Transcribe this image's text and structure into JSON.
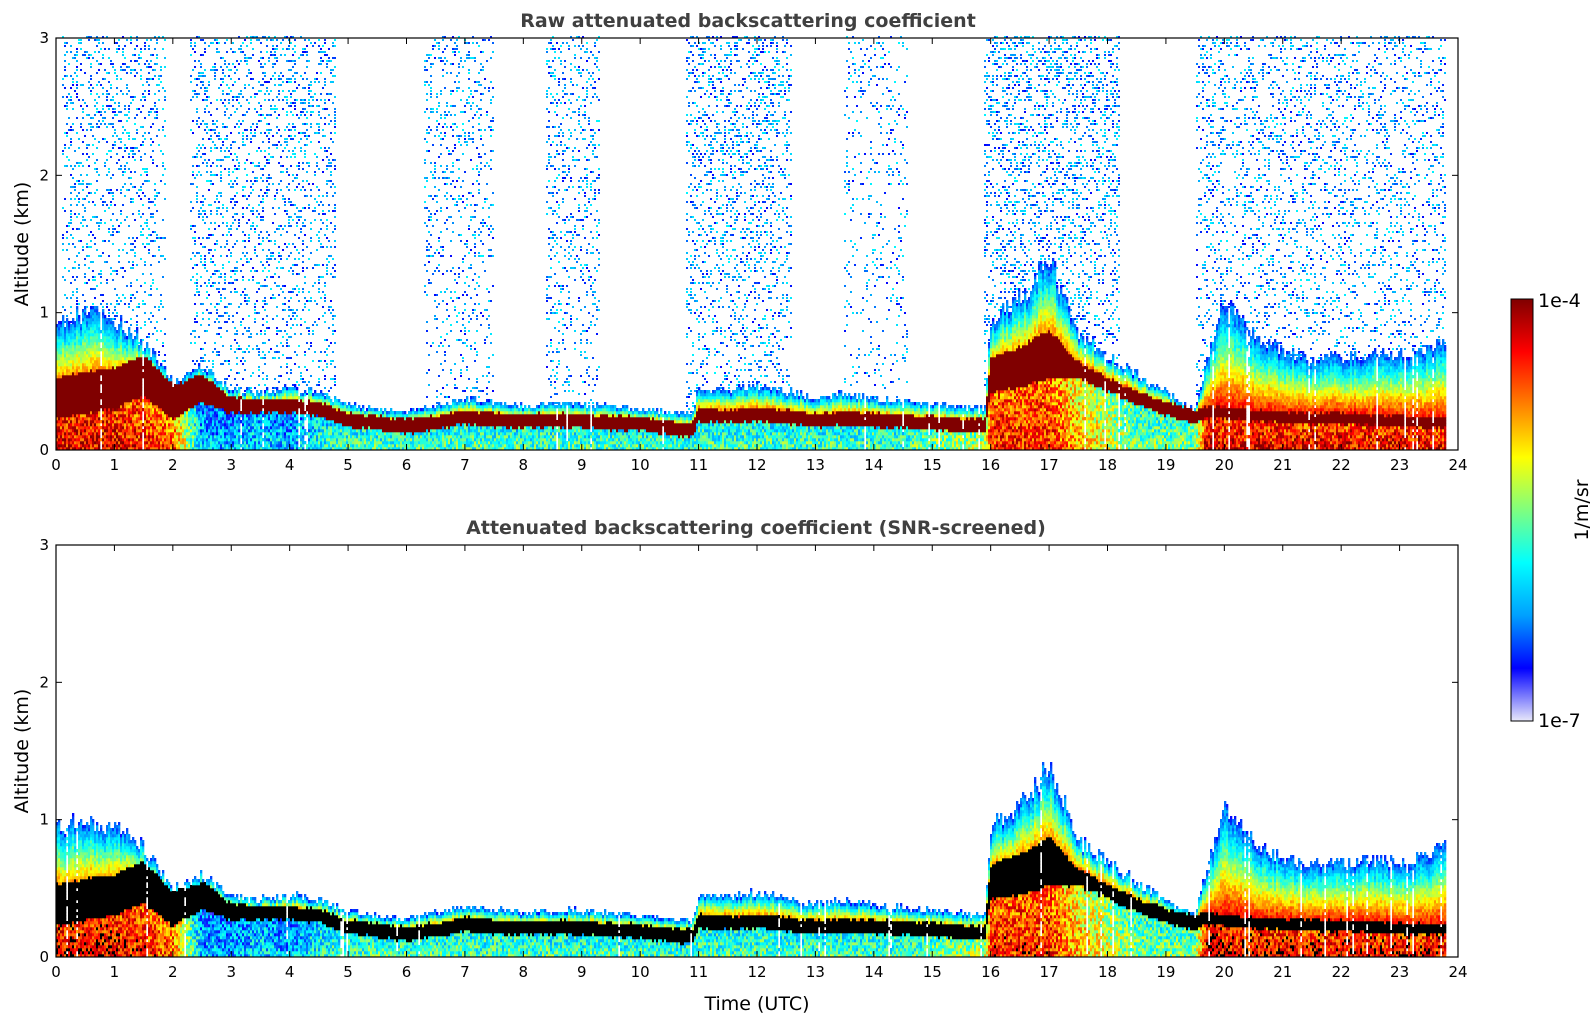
{
  "chart_data": [
    {
      "type": "heatmap",
      "title": "Raw attenuated backscattering coefficient",
      "xlabel": "",
      "ylabel": "Altitude (km)",
      "xlim": [
        0,
        24
      ],
      "ylim": [
        0,
        3
      ],
      "xticks": [
        "0",
        "1",
        "2",
        "3",
        "4",
        "5",
        "6",
        "7",
        "8",
        "9",
        "10",
        "11",
        "12",
        "13",
        "14",
        "15",
        "16",
        "17",
        "18",
        "19",
        "20",
        "21",
        "22",
        "23",
        "24"
      ],
      "yticks": [
        "0",
        "1",
        "2",
        "3"
      ],
      "grid": false,
      "noise_regions": [
        {
          "start": 0.1,
          "end": 1.9,
          "density": 0.35
        },
        {
          "start": 2.3,
          "end": 4.8,
          "density": 0.4
        },
        {
          "start": 6.3,
          "end": 7.5,
          "density": 0.3
        },
        {
          "start": 8.4,
          "end": 9.3,
          "density": 0.35
        },
        {
          "start": 10.8,
          "end": 12.6,
          "density": 0.45
        },
        {
          "start": 13.5,
          "end": 14.6,
          "density": 0.2
        },
        {
          "start": 15.9,
          "end": 18.2,
          "density": 0.5
        },
        {
          "start": 19.5,
          "end": 23.8,
          "density": 0.35
        }
      ]
    },
    {
      "type": "heatmap",
      "title": "Attenuated backscattering coefficient (SNR-screened)",
      "xlabel": "Time (UTC)",
      "ylabel": "Altitude (km)",
      "xlim": [
        0,
        24
      ],
      "ylim": [
        0,
        3
      ],
      "xticks": [
        "0",
        "1",
        "2",
        "3",
        "4",
        "5",
        "6",
        "7",
        "8",
        "9",
        "10",
        "11",
        "12",
        "13",
        "14",
        "15",
        "16",
        "17",
        "18",
        "19",
        "20",
        "21",
        "22",
        "23",
        "24"
      ],
      "yticks": [
        "0",
        "1",
        "2",
        "3"
      ],
      "grid": false,
      "saturation_color": "#000000"
    }
  ],
  "profile": {
    "time_utc": [
      0,
      0.5,
      1,
      1.5,
      2,
      2.5,
      3,
      3.5,
      4,
      4.5,
      5,
      5.5,
      6,
      6.5,
      7,
      7.5,
      8,
      8.5,
      9,
      9.5,
      10,
      10.5,
      10.9,
      11,
      11.5,
      12,
      12.5,
      13,
      13.5,
      14,
      14.5,
      15,
      15.5,
      15.9,
      16,
      16.5,
      17,
      17.5,
      18,
      18.5,
      19,
      19.5,
      19.7,
      20,
      20.5,
      21,
      21.5,
      22,
      22.5,
      23,
      23.5,
      23.8
    ],
    "layer_center_km": [
      0.38,
      0.42,
      0.45,
      0.55,
      0.35,
      0.45,
      0.33,
      0.32,
      0.32,
      0.3,
      0.22,
      0.2,
      0.17,
      0.2,
      0.24,
      0.22,
      0.21,
      0.22,
      0.21,
      0.2,
      0.19,
      0.16,
      0.15,
      0.26,
      0.25,
      0.26,
      0.24,
      0.22,
      0.23,
      0.22,
      0.21,
      0.2,
      0.18,
      0.18,
      0.55,
      0.6,
      0.7,
      0.58,
      0.48,
      0.38,
      0.3,
      0.25,
      0.28,
      0.27,
      0.25,
      0.24,
      0.23,
      0.23,
      0.22,
      0.21,
      0.2,
      0.2
    ],
    "layer_width_km": [
      0.3,
      0.3,
      0.3,
      0.3,
      0.25,
      0.2,
      0.12,
      0.1,
      0.1,
      0.1,
      0.1,
      0.1,
      0.1,
      0.1,
      0.1,
      0.1,
      0.1,
      0.1,
      0.1,
      0.1,
      0.1,
      0.1,
      0.1,
      0.1,
      0.1,
      0.1,
      0.1,
      0.1,
      0.1,
      0.1,
      0.1,
      0.1,
      0.1,
      0.1,
      0.25,
      0.3,
      0.35,
      0.12,
      0.1,
      0.1,
      0.1,
      0.1,
      0.08,
      0.08,
      0.08,
      0.08,
      0.08,
      0.08,
      0.08,
      0.08,
      0.08,
      0.08
    ],
    "top_km": [
      0.95,
      1.0,
      0.95,
      0.8,
      0.5,
      0.6,
      0.45,
      0.42,
      0.45,
      0.42,
      0.33,
      0.3,
      0.28,
      0.33,
      0.37,
      0.35,
      0.32,
      0.34,
      0.34,
      0.32,
      0.3,
      0.28,
      0.27,
      0.45,
      0.44,
      0.47,
      0.43,
      0.38,
      0.42,
      0.38,
      0.36,
      0.34,
      0.32,
      0.3,
      0.95,
      1.1,
      1.4,
      0.85,
      0.7,
      0.55,
      0.42,
      0.3,
      0.65,
      1.1,
      0.85,
      0.72,
      0.68,
      0.68,
      0.7,
      0.7,
      0.75,
      0.8
    ],
    "surface_intensity": [
      0.9,
      0.9,
      0.9,
      0.85,
      0.8,
      0.3,
      0.3,
      0.35,
      0.3,
      0.4,
      0.45,
      0.45,
      0.45,
      0.45,
      0.45,
      0.45,
      0.45,
      0.45,
      0.45,
      0.45,
      0.45,
      0.45,
      0.45,
      0.45,
      0.45,
      0.45,
      0.45,
      0.45,
      0.45,
      0.45,
      0.45,
      0.5,
      0.55,
      0.55,
      0.85,
      0.85,
      0.85,
      0.7,
      0.6,
      0.5,
      0.5,
      0.5,
      0.95,
      0.9,
      0.9,
      0.9,
      0.9,
      0.9,
      0.9,
      0.9,
      0.9,
      0.9
    ],
    "data_end_utc": 23.8
  },
  "colorbar": {
    "label": "1/m/sr",
    "max_label": "1e-4",
    "min_label": "1e-7",
    "colormap": "jet",
    "scale": "log",
    "stops": [
      "#e8e8fa",
      "#0000ff",
      "#00a0ff",
      "#00ffff",
      "#7fff7f",
      "#ffff00",
      "#ff8000",
      "#ff0000",
      "#800000"
    ]
  }
}
